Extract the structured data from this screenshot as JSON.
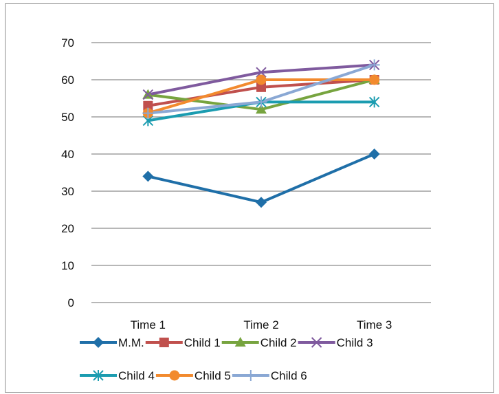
{
  "chart_data": {
    "type": "line",
    "title": "",
    "xlabel": "",
    "ylabel": "",
    "categories": [
      "Time 1",
      "Time 2",
      "Time 3"
    ],
    "ylim": [
      0,
      70
    ],
    "yticks": [
      0,
      10,
      20,
      30,
      40,
      50,
      60,
      70
    ],
    "grid": true,
    "legend_position": "bottom",
    "series": [
      {
        "name": "M.M.",
        "values": [
          34,
          27,
          40
        ],
        "color": "#1f6fa8",
        "marker": "diamond"
      },
      {
        "name": "Child 1",
        "values": [
          53,
          58,
          60
        ],
        "color": "#c0504d",
        "marker": "square"
      },
      {
        "name": "Child 2",
        "values": [
          56,
          52,
          60
        ],
        "color": "#77a43f",
        "marker": "triangle"
      },
      {
        "name": "Child 3",
        "values": [
          56,
          62,
          64
        ],
        "color": "#7f5a9e",
        "marker": "x"
      },
      {
        "name": "Child 4",
        "values": [
          49,
          54,
          54
        ],
        "color": "#1b9cb0",
        "marker": "star"
      },
      {
        "name": "Child 5",
        "values": [
          51,
          60,
          60
        ],
        "color": "#f28a2e",
        "marker": "circle"
      },
      {
        "name": "Child 6",
        "values": [
          51,
          54,
          64
        ],
        "color": "#8aa8d4",
        "marker": "plus"
      }
    ]
  }
}
